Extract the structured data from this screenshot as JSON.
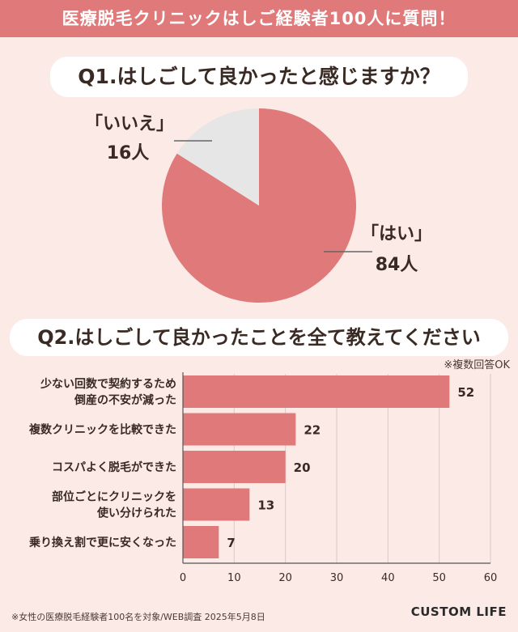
{
  "header": {
    "title": "医療脱毛クリニックはしご経験者100人に質問！"
  },
  "q1": {
    "question": "Q1.はしごして良かったと感じますか？"
  },
  "q2": {
    "question": "Q2.はしごして良かったことを全て教えてください",
    "note": "※複数回答OK"
  },
  "footer": {
    "source": "※女性の医療脱毛経験者100名を対象/WEB調査 2025年5月8日",
    "logo": "CUSTOM LIFE"
  },
  "colors": {
    "accent": "#e07a7a",
    "gray": "#e6e6e6",
    "bg": "#fbeae6"
  },
  "chart_data": [
    {
      "type": "pie",
      "slices": [
        {
          "label": "「はい」",
          "value": 84,
          "value_label": "84人",
          "color": "#e07a7a"
        },
        {
          "label": "「いいえ」",
          "value": 16,
          "value_label": "16人",
          "color": "#e6e6e6"
        }
      ]
    },
    {
      "type": "bar",
      "orientation": "horizontal",
      "categories": [
        [
          "少ない回数で契約するため",
          "倒産の不安が減った"
        ],
        [
          "複数クリニックを比較できた"
        ],
        [
          "コスパよく脱毛ができた"
        ],
        [
          "部位ごとにクリニックを",
          "使い分けられた"
        ],
        [
          "乗り換え割で更に安くなった"
        ]
      ],
      "values": [
        52,
        22,
        20,
        13,
        7
      ],
      "xlim": [
        0,
        60
      ],
      "xticks": [
        0,
        10,
        20,
        30,
        40,
        50,
        60
      ],
      "grid": true
    }
  ]
}
